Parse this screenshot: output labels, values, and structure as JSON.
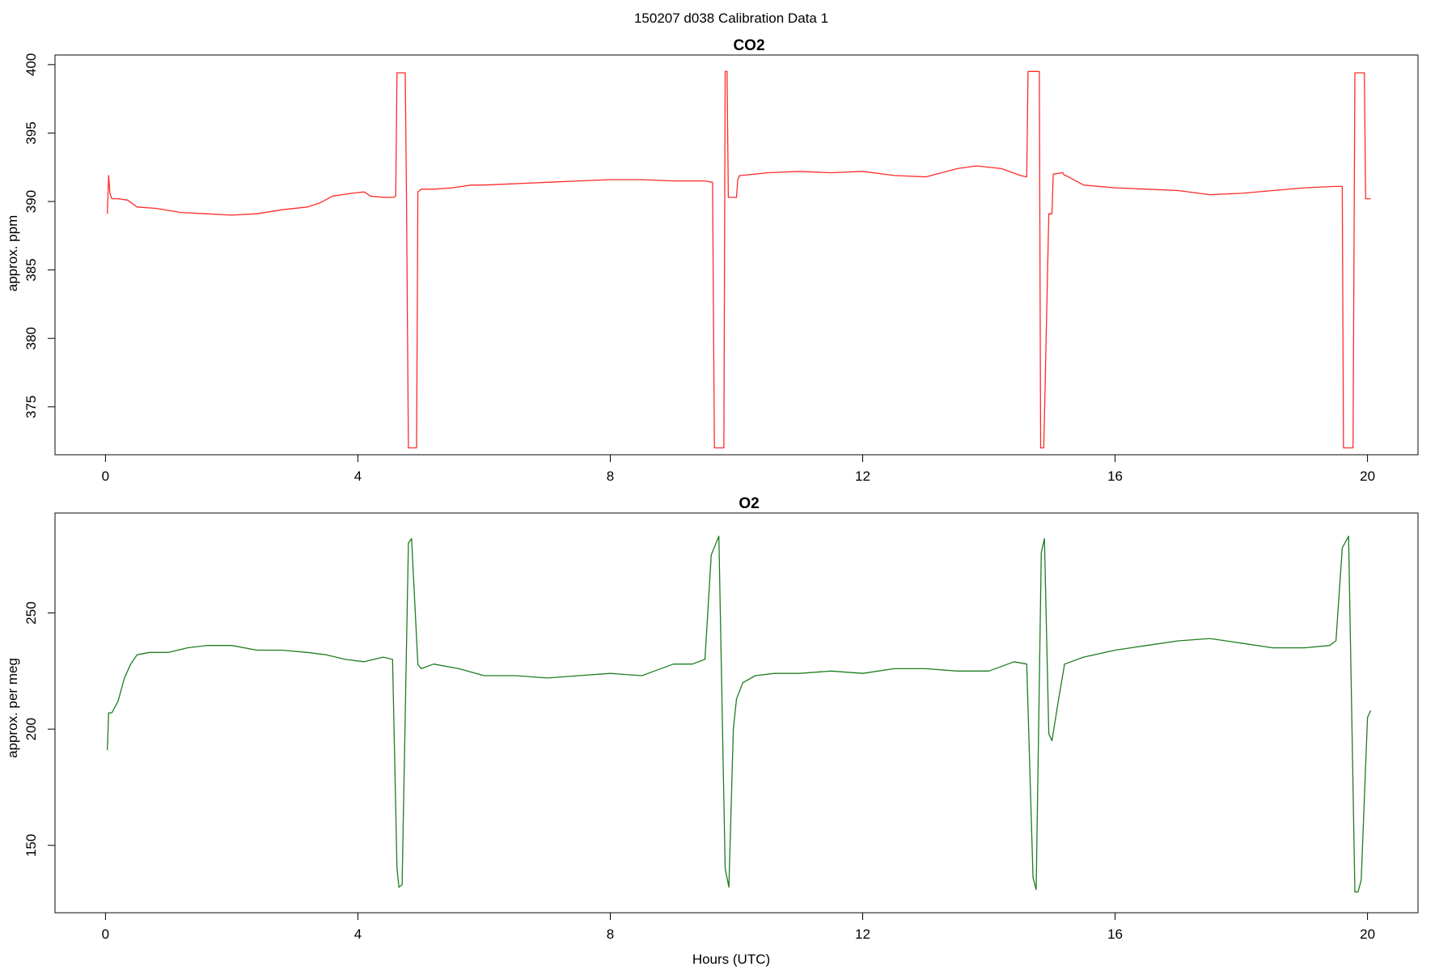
{
  "page": {
    "title": "150207   d038   Calibration Data 1"
  },
  "x_axis": {
    "label": "Hours (UTC)"
  },
  "chart_data": [
    {
      "type": "line",
      "title": "CO2",
      "ylabel": "approx. ppm",
      "xlabel": "",
      "xlim": [
        -0.8,
        20.8
      ],
      "ylim": [
        371.5,
        400.7
      ],
      "xticks": [
        0,
        4,
        8,
        12,
        16,
        20
      ],
      "yticks": [
        375,
        380,
        385,
        390,
        395,
        400
      ],
      "grid": false,
      "color": "#ff2a2a",
      "series": [
        {
          "x": [
            0.03,
            0.05,
            0.07,
            0.1,
            0.2,
            0.35,
            0.5,
            0.8,
            1.2,
            1.6,
            2.0,
            2.4,
            2.8,
            3.2,
            3.4,
            3.6,
            3.9,
            4.1,
            4.2,
            4.4,
            4.57,
            4.6,
            4.62,
            4.75,
            4.77,
            4.8,
            4.82,
            4.93,
            4.95,
            4.98,
            5.0,
            5.2,
            5.5,
            5.8,
            6.0,
            6.5,
            7.0,
            7.5,
            8.0,
            8.5,
            9.0,
            9.5,
            9.62,
            9.65,
            9.67,
            9.8,
            9.82,
            9.85,
            9.87,
            10.0,
            10.02,
            10.05,
            10.07,
            10.5,
            11.0,
            11.5,
            12.0,
            12.5,
            13.0,
            13.5,
            13.8,
            14.2,
            14.5,
            14.6,
            14.62,
            14.65,
            14.8,
            14.82,
            14.85,
            14.87,
            14.95,
            14.97,
            15.0,
            15.02,
            15.17,
            15.2,
            15.22,
            15.5,
            16.0,
            16.5,
            17.0,
            17.5,
            18.0,
            18.5,
            19.0,
            19.5,
            19.6,
            19.62,
            19.65,
            19.67,
            19.77,
            19.8,
            19.82,
            19.95,
            19.97,
            20.0,
            20.05
          ],
          "values": [
            389.1,
            391.9,
            390.6,
            390.2,
            390.2,
            390.1,
            389.6,
            389.5,
            389.2,
            389.1,
            389.0,
            389.1,
            389.4,
            389.6,
            389.9,
            390.4,
            390.6,
            390.7,
            390.4,
            390.3,
            390.3,
            390.4,
            399.4,
            399.4,
            390.5,
            372.0,
            372.0,
            372.0,
            390.7,
            390.8,
            390.9,
            390.9,
            391.0,
            391.2,
            391.2,
            391.3,
            391.4,
            391.5,
            391.6,
            391.6,
            391.5,
            391.5,
            391.4,
            372.0,
            372.0,
            372.0,
            399.5,
            399.5,
            390.3,
            390.3,
            391.6,
            391.9,
            391.9,
            392.1,
            392.2,
            392.1,
            392.2,
            391.9,
            391.8,
            392.4,
            392.6,
            392.4,
            391.9,
            391.8,
            399.5,
            399.5,
            399.5,
            372.0,
            372.0,
            372.0,
            389.1,
            389.1,
            389.1,
            392.0,
            392.1,
            391.9,
            391.9,
            391.2,
            391.0,
            390.9,
            390.8,
            390.5,
            390.6,
            390.8,
            391.0,
            391.1,
            391.1,
            372.0,
            372.0,
            372.0,
            372.0,
            399.4,
            399.4,
            399.4,
            390.2,
            390.2,
            390.2
          ]
        }
      ]
    },
    {
      "type": "line",
      "title": "O2",
      "ylabel": "approx. per meg",
      "xlabel": "Hours (UTC)",
      "xlim": [
        -0.8,
        20.8
      ],
      "ylim": [
        121,
        293
      ],
      "xticks": [
        0,
        4,
        8,
        12,
        16,
        20
      ],
      "yticks": [
        150,
        200,
        250
      ],
      "grid": false,
      "color": "#1e7d1e",
      "series": [
        {
          "x": [
            0.03,
            0.05,
            0.1,
            0.2,
            0.3,
            0.4,
            0.5,
            0.7,
            1.0,
            1.3,
            1.6,
            2.0,
            2.4,
            2.8,
            3.2,
            3.5,
            3.8,
            4.1,
            4.4,
            4.55,
            4.62,
            4.65,
            4.7,
            4.8,
            4.85,
            4.95,
            5.0,
            5.2,
            5.6,
            6.0,
            6.5,
            7.0,
            7.5,
            8.0,
            8.5,
            8.7,
            9.0,
            9.3,
            9.5,
            9.6,
            9.72,
            9.82,
            9.88,
            9.95,
            10.0,
            10.1,
            10.3,
            10.6,
            11.0,
            11.5,
            12.0,
            12.5,
            13.0,
            13.5,
            14.0,
            14.4,
            14.6,
            14.7,
            14.75,
            14.83,
            14.88,
            14.95,
            15.0,
            15.1,
            15.2,
            15.5,
            16.0,
            16.5,
            17.0,
            17.5,
            18.0,
            18.5,
            19.0,
            19.4,
            19.5,
            19.6,
            19.7,
            19.8,
            19.85,
            19.9,
            20.0,
            20.05
          ],
          "values": [
            191,
            207,
            207,
            212,
            222,
            228,
            232,
            233,
            233,
            235,
            236,
            236,
            234,
            234,
            233,
            232,
            230,
            229,
            231,
            230,
            140,
            132,
            133,
            280,
            282,
            228,
            226,
            228,
            226,
            223,
            223,
            222,
            223,
            224,
            223,
            225,
            228,
            228,
            230,
            275,
            283,
            140,
            132,
            200,
            213,
            220,
            223,
            224,
            224,
            225,
            224,
            226,
            226,
            225,
            225,
            229,
            228,
            136,
            131,
            276,
            282,
            198,
            195,
            212,
            228,
            231,
            234,
            236,
            238,
            239,
            237,
            235,
            235,
            236,
            238,
            278,
            283,
            130,
            130,
            135,
            205,
            208
          ]
        }
      ]
    }
  ]
}
